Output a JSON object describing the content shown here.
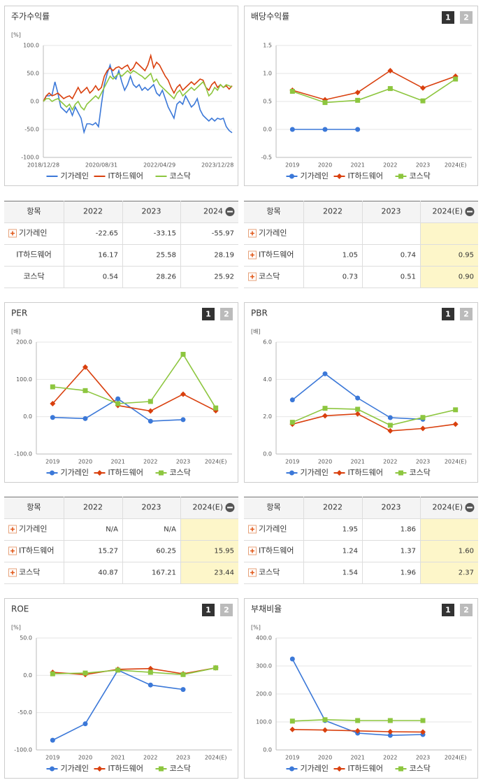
{
  "chart_data": [
    {
      "type": "line",
      "title": "주가수익률",
      "ylabel": "[%]",
      "categories": [
        "2018/12/28",
        null,
        null,
        null,
        null,
        null,
        null,
        null,
        null,
        null,
        null,
        null,
        null,
        null,
        null,
        null,
        null,
        null,
        null,
        null,
        "2020/08/31",
        null,
        null,
        null,
        null,
        null,
        null,
        null,
        null,
        null,
        null,
        null,
        null,
        null,
        null,
        null,
        null,
        null,
        null,
        null,
        "2022/04/29",
        null,
        null,
        null,
        null,
        null,
        null,
        null,
        null,
        null,
        null,
        null,
        null,
        null,
        null,
        null,
        null,
        null,
        null,
        null,
        "2023/12/28",
        null,
        null,
        null,
        null,
        null
      ],
      "ylim": [
        -100,
        100
      ],
      "yticks": [
        {
          "value": -100,
          "label": "-100.0"
        },
        {
          "value": -50,
          "label": "-50.0"
        },
        {
          "value": 0,
          "label": "0.0"
        },
        {
          "value": 50,
          "label": "50.0"
        },
        {
          "value": 100,
          "label": "100.0"
        }
      ],
      "grid": true,
      "series": [
        {
          "name": "기가레인",
          "color": "#3b78d8",
          "values": [
            0,
            10,
            10,
            12,
            35,
            15,
            -10,
            -15,
            -20,
            -12,
            -25,
            -10,
            -20,
            -30,
            -55,
            -40,
            -40,
            -42,
            -38,
            -45,
            -5,
            30,
            50,
            65,
            45,
            40,
            55,
            35,
            20,
            30,
            45,
            30,
            25,
            30,
            20,
            25,
            20,
            25,
            30,
            15,
            10,
            20,
            5,
            -10,
            -20,
            -30,
            -5,
            0,
            -5,
            10,
            0,
            -10,
            -5,
            5,
            -15,
            -25,
            -30,
            -35,
            -30,
            -35,
            -30,
            -32,
            -30,
            -45,
            -52,
            -56
          ]
        },
        {
          "name": "IT하드웨어",
          "color": "#d9400e",
          "values": [
            0,
            10,
            15,
            10,
            12,
            15,
            10,
            5,
            8,
            10,
            5,
            15,
            25,
            15,
            20,
            25,
            15,
            20,
            28,
            20,
            25,
            45,
            55,
            60,
            55,
            60,
            62,
            58,
            62,
            65,
            55,
            60,
            70,
            65,
            60,
            55,
            65,
            82,
            60,
            70,
            65,
            55,
            45,
            38,
            25,
            15,
            25,
            30,
            20,
            25,
            30,
            35,
            30,
            35,
            40,
            38,
            25,
            20,
            30,
            35,
            25,
            30,
            25,
            28,
            22,
            28
          ]
        },
        {
          "name": "코스닥",
          "color": "#8dc63f",
          "values": [
            0,
            5,
            5,
            0,
            3,
            5,
            0,
            -5,
            -10,
            -5,
            -15,
            -5,
            0,
            -10,
            -15,
            -5,
            0,
            5,
            10,
            5,
            15,
            25,
            35,
            45,
            40,
            45,
            50,
            45,
            50,
            55,
            50,
            55,
            52,
            48,
            45,
            40,
            45,
            50,
            35,
            40,
            30,
            25,
            20,
            15,
            10,
            5,
            15,
            20,
            10,
            15,
            20,
            25,
            20,
            25,
            30,
            35,
            25,
            10,
            15,
            25,
            20,
            30,
            25,
            30,
            28,
            26
          ]
        }
      ]
    },
    {
      "type": "line",
      "title": "배당수익률",
      "tabs": [
        "1",
        "2"
      ],
      "ylabel": null,
      "categories": [
        "2019",
        "2020",
        "2021",
        "2022",
        "2023",
        "2024(E)"
      ],
      "ylim": [
        -0.5,
        1.5
      ],
      "yticks": [
        -0.5,
        {
          "value": 0,
          "label": "0.0"
        },
        0.5,
        {
          "value": 1,
          "label": "1.0"
        },
        1.5
      ],
      "grid": true,
      "series": [
        {
          "name": "기가레인",
          "color": "#3b78d8",
          "marker": "circle",
          "values": [
            0,
            0,
            0,
            null,
            null,
            null
          ]
        },
        {
          "name": "IT하드웨어",
          "color": "#d9400e",
          "marker": "diamond",
          "values": [
            0.7,
            0.53,
            0.66,
            1.05,
            0.74,
            0.95
          ]
        },
        {
          "name": "코스닥",
          "color": "#8dc63f",
          "marker": "square",
          "values": [
            0.68,
            0.48,
            0.52,
            0.73,
            0.51,
            0.9
          ]
        }
      ]
    },
    {
      "type": "line",
      "title": "PER",
      "tabs": [
        "1",
        "2"
      ],
      "ylabel": "[배]",
      "categories": [
        "2019",
        "2020",
        "2021",
        "2022",
        "2023",
        "2024(E)"
      ],
      "ylim": [
        -100,
        200
      ],
      "yticks": [
        {
          "value": -100,
          "label": "-100.0"
        },
        {
          "value": 0,
          "label": "0.0"
        },
        {
          "value": 100,
          "label": "100.0"
        },
        {
          "value": 200,
          "label": "200.0"
        }
      ],
      "grid": true,
      "series": [
        {
          "name": "기가레인",
          "color": "#3b78d8",
          "marker": "circle",
          "values": [
            -2,
            -5,
            48,
            -12,
            -8,
            null
          ]
        },
        {
          "name": "IT하드웨어",
          "color": "#d9400e",
          "marker": "diamond",
          "values": [
            35,
            133,
            30,
            15.27,
            60.25,
            15.95
          ]
        },
        {
          "name": "코스닥",
          "color": "#8dc63f",
          "marker": "square",
          "values": [
            80,
            70,
            35,
            40.87,
            167.21,
            23.44
          ]
        }
      ]
    },
    {
      "type": "line",
      "title": "PBR",
      "tabs": [
        "1",
        "2"
      ],
      "ylabel": "[배]",
      "categories": [
        "2019",
        "2020",
        "2021",
        "2022",
        "2023",
        "2024(E)"
      ],
      "ylim": [
        0,
        6
      ],
      "yticks": [
        {
          "value": 0,
          "label": "0.0"
        },
        {
          "value": 2,
          "label": "2.0"
        },
        {
          "value": 4,
          "label": "4.0"
        },
        {
          "value": 6,
          "label": "6.0"
        }
      ],
      "grid": true,
      "series": [
        {
          "name": "기가레인",
          "color": "#3b78d8",
          "marker": "circle",
          "values": [
            2.9,
            4.3,
            3.0,
            1.95,
            1.86,
            null
          ]
        },
        {
          "name": "IT하드웨어",
          "color": "#d9400e",
          "marker": "diamond",
          "values": [
            1.6,
            2.05,
            2.15,
            1.24,
            1.37,
            1.6
          ]
        },
        {
          "name": "코스닥",
          "color": "#8dc63f",
          "marker": "square",
          "values": [
            1.7,
            2.45,
            2.4,
            1.54,
            1.96,
            2.37
          ]
        }
      ]
    },
    {
      "type": "line",
      "title": "ROE",
      "tabs": [
        "1",
        "2"
      ],
      "ylabel": "[%]",
      "categories": [
        "2019",
        "2020",
        "2021",
        "2022",
        "2023",
        "2024(E)"
      ],
      "ylim": [
        -100,
        50
      ],
      "yticks": [
        {
          "value": -100,
          "label": "-100.0"
        },
        {
          "value": -50,
          "label": "-50.0"
        },
        {
          "value": 0,
          "label": "0.0"
        },
        {
          "value": 50,
          "label": "50.0"
        }
      ],
      "grid": true,
      "series": [
        {
          "name": "기가레인",
          "color": "#3b78d8",
          "marker": "circle",
          "values": [
            -87,
            -65,
            7,
            -13,
            -19,
            null
          ]
        },
        {
          "name": "IT하드웨어",
          "color": "#d9400e",
          "marker": "diamond",
          "values": [
            4,
            1,
            8,
            9,
            2,
            10
          ]
        },
        {
          "name": "코스닥",
          "color": "#8dc63f",
          "marker": "square",
          "values": [
            2,
            3,
            7,
            4,
            1,
            10
          ]
        }
      ]
    },
    {
      "type": "line",
      "title": "부채비율",
      "tabs": [
        "1",
        "2"
      ],
      "ylabel": "[%]",
      "categories": [
        "2019",
        "2020",
        "2021",
        "2022",
        "2023",
        "2024(E)"
      ],
      "ylim": [
        0,
        400
      ],
      "yticks": [
        {
          "value": 0,
          "label": "0.0"
        },
        {
          "value": 100,
          "label": "100.0"
        },
        {
          "value": 200,
          "label": "200.0"
        },
        {
          "value": 300,
          "label": "300.0"
        },
        {
          "value": 400,
          "label": "400.0"
        }
      ],
      "grid": true,
      "series": [
        {
          "name": "기가레인",
          "color": "#3b78d8",
          "marker": "circle",
          "values": [
            325,
            105,
            60,
            52,
            55,
            null
          ]
        },
        {
          "name": "IT하드웨어",
          "color": "#d9400e",
          "marker": "diamond",
          "values": [
            73,
            71,
            68,
            65,
            64,
            null
          ]
        },
        {
          "name": "코스닥",
          "color": "#8dc63f",
          "marker": "square",
          "values": [
            103,
            108,
            105,
            105,
            105,
            null
          ]
        }
      ]
    }
  ],
  "tables": [
    {
      "header": [
        "항목",
        "2022",
        "2023",
        "2024"
      ],
      "highlight_last_column": false,
      "rows": [
        {
          "name": "기가레인",
          "expandable": true,
          "values": [
            "-22.65",
            "-33.15",
            "-55.97"
          ]
        },
        {
          "name": "IT하드웨어",
          "expandable": false,
          "values": [
            "16.17",
            "25.58",
            "28.19"
          ]
        },
        {
          "name": "코스닥",
          "expandable": false,
          "values": [
            "0.54",
            "28.26",
            "25.92"
          ]
        }
      ]
    },
    {
      "header": [
        "항목",
        "2022",
        "2023",
        "2024(E)"
      ],
      "highlight_last_column": true,
      "rows": [
        {
          "name": "기가레인",
          "expandable": true,
          "values": [
            null,
            null,
            null
          ]
        },
        {
          "name": "IT하드웨어",
          "expandable": true,
          "values": [
            "1.05",
            "0.74",
            "0.95"
          ]
        },
        {
          "name": "코스닥",
          "expandable": true,
          "values": [
            "0.73",
            "0.51",
            "0.90"
          ]
        }
      ]
    },
    {
      "header": [
        "항목",
        "2022",
        "2023",
        "2024(E)"
      ],
      "highlight_last_column": true,
      "rows": [
        {
          "name": "기가레인",
          "expandable": true,
          "values": [
            "N/A",
            "N/A",
            null
          ]
        },
        {
          "name": "IT하드웨어",
          "expandable": true,
          "values": [
            "15.27",
            "60.25",
            "15.95"
          ]
        },
        {
          "name": "코스닥",
          "expandable": true,
          "values": [
            "40.87",
            "167.21",
            "23.44"
          ]
        }
      ]
    },
    {
      "header": [
        "항목",
        "2022",
        "2023",
        "2024(E)"
      ],
      "highlight_last_column": true,
      "rows": [
        {
          "name": "기가레인",
          "expandable": true,
          "values": [
            "1.95",
            "1.86",
            null
          ]
        },
        {
          "name": "IT하드웨어",
          "expandable": true,
          "values": [
            "1.24",
            "1.37",
            "1.60"
          ]
        },
        {
          "name": "코스닥",
          "expandable": true,
          "values": [
            "1.54",
            "1.96",
            "2.37"
          ]
        }
      ]
    }
  ]
}
